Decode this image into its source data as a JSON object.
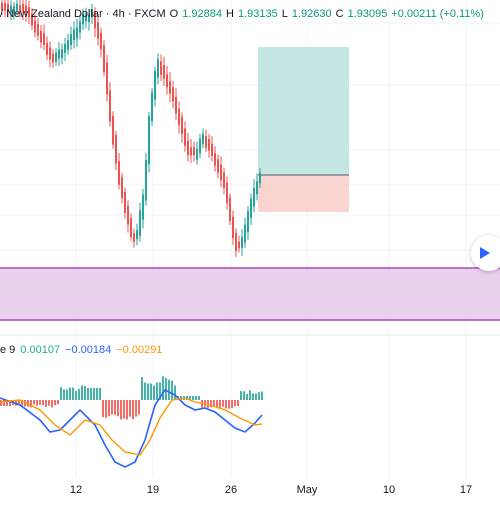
{
  "chart": {
    "symbol_text": "/ New Zealand Dollar · 4h · FXCM",
    "ohlc": [
      {
        "label": "O",
        "value": "1.92884"
      },
      {
        "label": "H",
        "value": "1.93135"
      },
      {
        "label": "L",
        "value": "1.92630"
      },
      {
        "label": "C",
        "value": "1.93095"
      }
    ],
    "change": "+0.00211 (+0.11%)"
  },
  "macd_legend": {
    "title": "e 9",
    "values": [
      {
        "text": "0.00107",
        "color": "#22ab94"
      },
      {
        "text": "−0.00184",
        "color": "#2962ff"
      },
      {
        "text": "−0.00291",
        "color": "#ff9800"
      }
    ]
  },
  "x_axis": {
    "labels": [
      "12",
      "19",
      "26",
      "May",
      "10",
      "17"
    ]
  },
  "position_tool": {
    "profit_color": "#b2dfdb",
    "loss_color": "#f8c9c6"
  },
  "zone": {
    "color": "#e1bee7",
    "border": "#ab47bc"
  },
  "colors": {
    "up": "#26a69a",
    "down": "#ef5350",
    "macd_line": "#2962ff",
    "signal_line": "#ff9800"
  },
  "scroll_button_icon": "play-right-icon"
}
